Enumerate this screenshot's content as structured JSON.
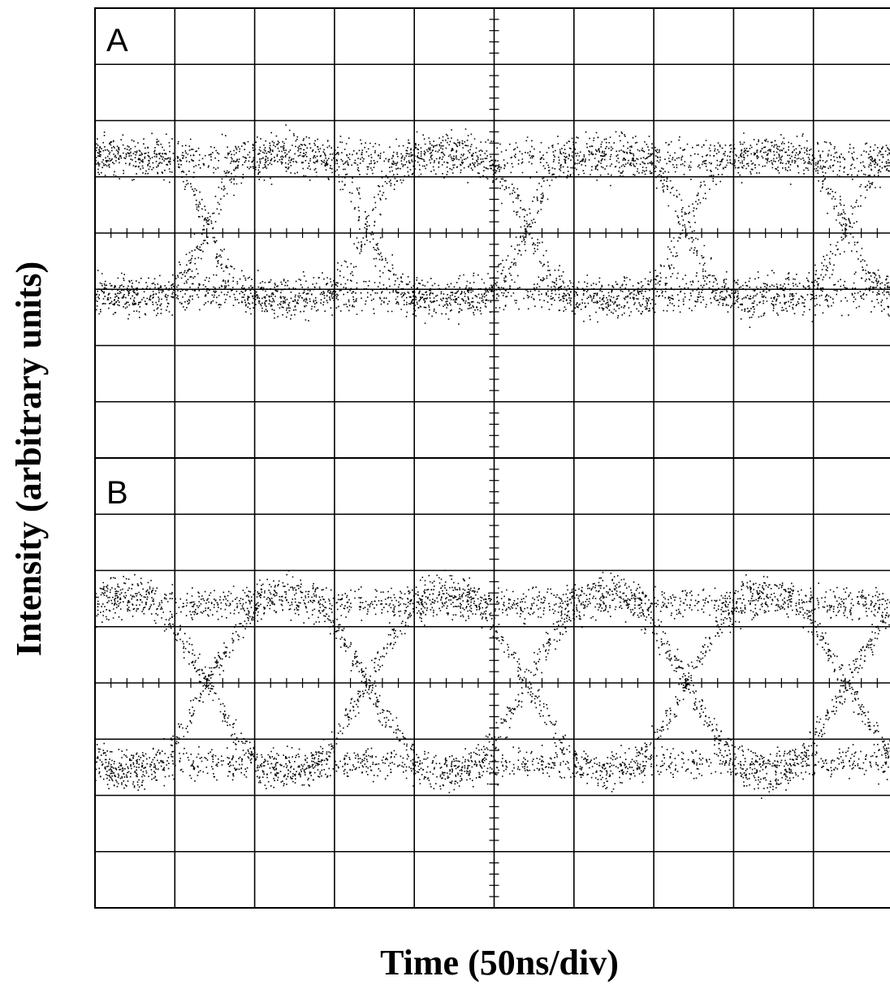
{
  "panels": [
    {
      "label": "A"
    },
    {
      "label": "B"
    }
  ],
  "x_label": "Time (50ns/div)",
  "y_label": "Intensity (arbitrary units)"
}
